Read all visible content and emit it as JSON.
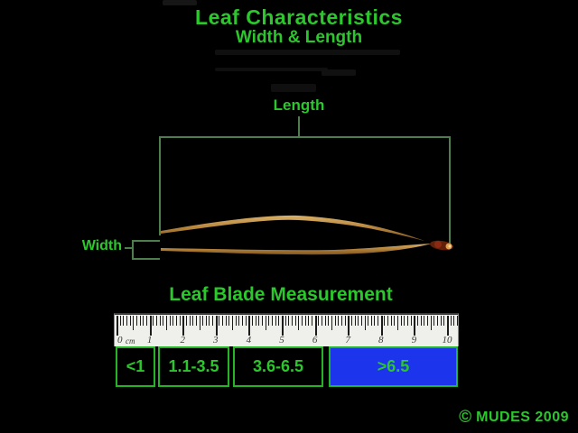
{
  "title": "Leaf Characteristics",
  "subtitle": "Width & Length",
  "diagram": {
    "length_label": "Length",
    "width_label": "Width"
  },
  "section_title": "Leaf Blade Measurement",
  "ruler": {
    "unit": "cm",
    "tick_labels": [
      "0",
      "1",
      "2",
      "3",
      "4",
      "5",
      "6",
      "7",
      "8",
      "9",
      "10"
    ]
  },
  "categories": [
    {
      "label": "<1",
      "highlighted": false
    },
    {
      "label": "1.1-3.5",
      "highlighted": false
    },
    {
      "label": "3.6-6.5",
      "highlighted": false
    },
    {
      "label": ">6.5",
      "highlighted": true
    }
  ],
  "footer": {
    "copyright": "©",
    "credit": "MUDES 2009"
  },
  "colors": {
    "background": "#000000",
    "text_green": "#2cc72c",
    "bracket_green": "#4e7e4e",
    "box_border_green": "#25b425",
    "highlight_blue": "#1c35ec",
    "ruler_bg": "#efefeb"
  }
}
